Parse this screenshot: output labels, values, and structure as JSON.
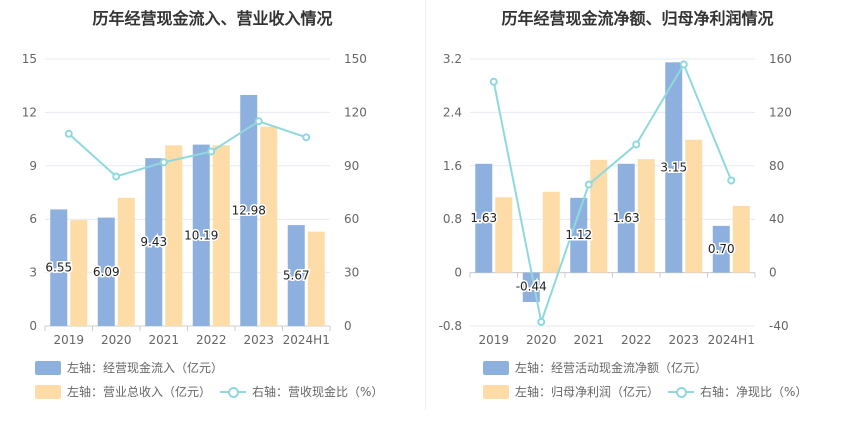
{
  "chart_data": [
    {
      "type": "bar",
      "title": "历年经营现金流入、营业收入情况",
      "categories": [
        "2019",
        "2020",
        "2021",
        "2022",
        "2023",
        "2024H1"
      ],
      "left_axis": {
        "ticks": [
          "15",
          "12",
          "9",
          "6",
          "3",
          "0"
        ],
        "ylim": [
          0,
          15
        ]
      },
      "right_axis": {
        "ticks": [
          "150",
          "120",
          "90",
          "60",
          "30",
          "0"
        ],
        "ylim": [
          0,
          150
        ]
      },
      "series": [
        {
          "name": "左轴：经营现金流入（亿元）",
          "kind": "bar",
          "axis": "left",
          "color": "#8eb0de",
          "values": [
            6.55,
            6.09,
            9.43,
            10.19,
            12.98,
            5.67
          ],
          "labels": [
            "6.55",
            "6.09",
            "9.43",
            "10.19",
            "12.98",
            "5.67"
          ]
        },
        {
          "name": "左轴：营业总收入（亿元）",
          "kind": "bar",
          "axis": "left",
          "color": "#fedca7",
          "values": [
            5.95,
            7.2,
            10.15,
            10.15,
            11.2,
            5.3
          ]
        },
        {
          "name": "右轴：营收现金比（%）",
          "kind": "line",
          "axis": "right",
          "color": "#8fd9de",
          "values": [
            108,
            84,
            92,
            98,
            115,
            106
          ]
        }
      ]
    },
    {
      "type": "bar",
      "title": "历年经营现金流净额、归母净利润情况",
      "categories": [
        "2019",
        "2020",
        "2021",
        "2022",
        "2023",
        "2024H1"
      ],
      "left_axis": {
        "ticks": [
          "3.2",
          "2.4",
          "1.6",
          "0.8",
          "0",
          "-0.8"
        ],
        "ylim": [
          -0.8,
          3.2
        ]
      },
      "right_axis": {
        "ticks": [
          "160",
          "120",
          "80",
          "40",
          "0",
          "-40"
        ],
        "ylim": [
          -40,
          160
        ]
      },
      "series": [
        {
          "name": "左轴：经营活动现金流净额（亿元）",
          "kind": "bar",
          "axis": "left",
          "color": "#8eb0de",
          "values": [
            1.63,
            -0.44,
            1.12,
            1.63,
            3.15,
            0.7
          ],
          "labels": [
            "1.63",
            "-0.44",
            "1.12",
            "1.63",
            "3.15",
            "0.70"
          ]
        },
        {
          "name": "左轴：归母净利润（亿元）",
          "kind": "bar",
          "axis": "left",
          "color": "#fedca7",
          "values": [
            1.13,
            1.21,
            1.69,
            1.7,
            1.99,
            1.0
          ]
        },
        {
          "name": "右轴：净现比（%）",
          "kind": "line",
          "axis": "right",
          "color": "#8fd9de",
          "values": [
            143,
            -37,
            66,
            96,
            156,
            69
          ]
        }
      ]
    }
  ]
}
